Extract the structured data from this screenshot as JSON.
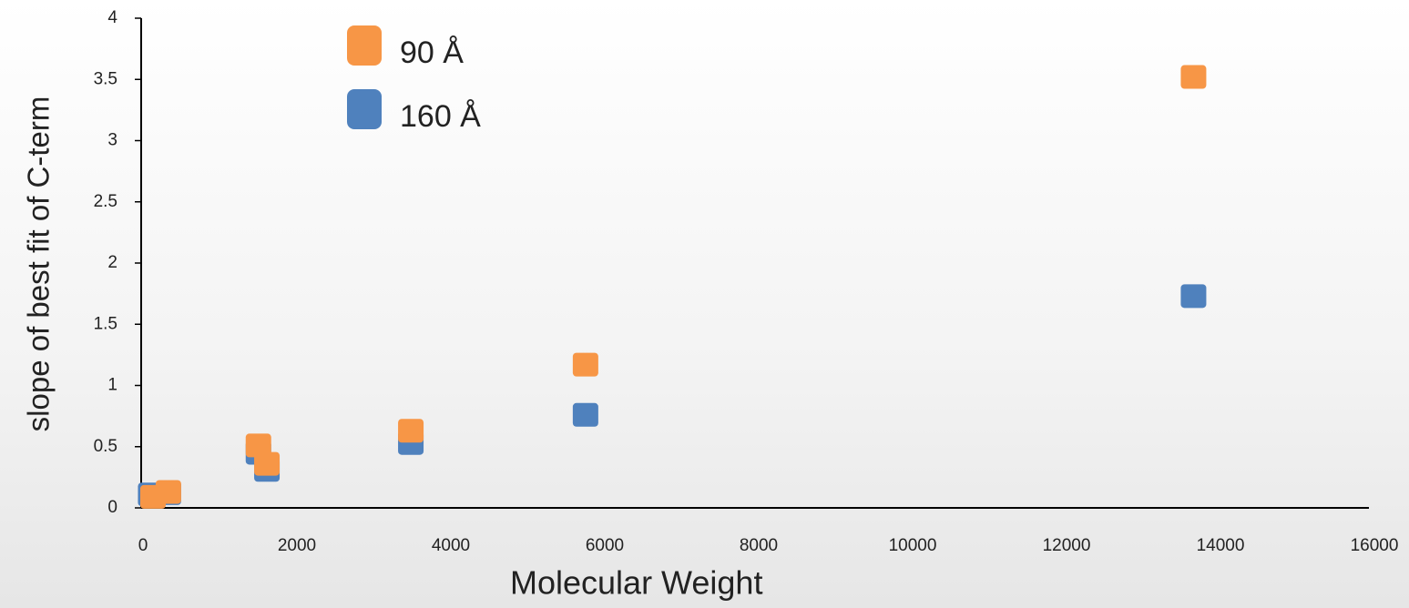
{
  "chart_data": {
    "type": "scatter",
    "x_label": "Molecular Weight",
    "y_label": "slope of best fit of C-term",
    "xlim": [
      0,
      16000
    ],
    "xticks": [
      0,
      2000,
      4000,
      6000,
      8000,
      10000,
      12000,
      14000,
      16000
    ],
    "ylim": [
      0,
      4
    ],
    "yticks": [
      0,
      0.5,
      1,
      1.5,
      2,
      2.5,
      3,
      3.5,
      4
    ],
    "legend": "top-left",
    "series": [
      {
        "name": "160 Å",
        "color": "#4f81bd",
        "x": [
          13650,
          5750,
          3480,
          1500,
          1610,
          330,
          100
        ],
        "y": [
          1.73,
          0.76,
          0.53,
          0.45,
          0.31,
          0.12,
          0.11
        ]
      },
      {
        "name": "90 Å",
        "color": "#f79646",
        "x": [
          13650,
          5750,
          3480,
          1500,
          1610,
          330,
          130
        ],
        "y": [
          3.52,
          1.17,
          0.63,
          0.51,
          0.36,
          0.13,
          0.09
        ]
      }
    ]
  }
}
